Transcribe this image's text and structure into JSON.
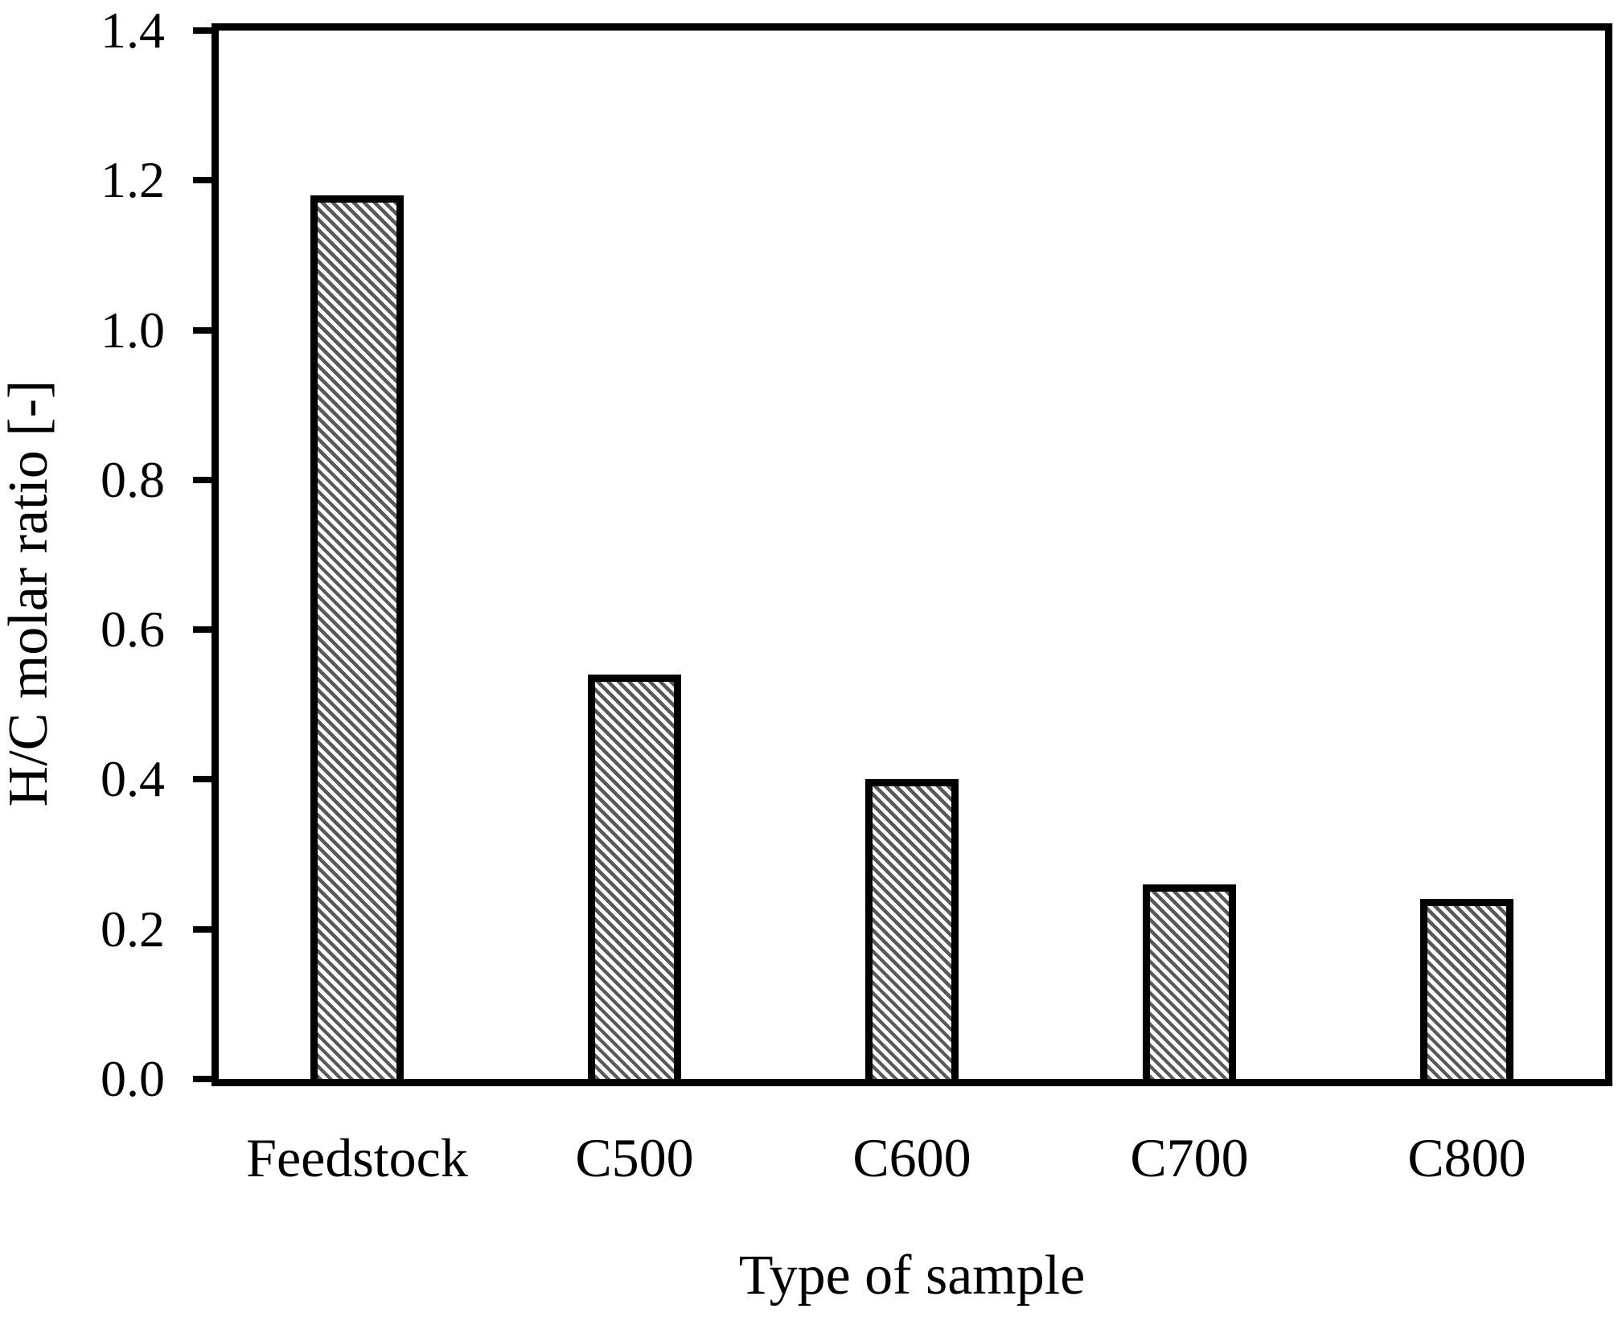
{
  "chart_data": {
    "type": "bar",
    "categories": [
      "Feedstock",
      "C500",
      "C600",
      "C700",
      "C800"
    ],
    "values": [
      1.18,
      0.54,
      0.4,
      0.26,
      0.24
    ],
    "title": "",
    "xlabel": "Type of sample",
    "ylabel": "H/C molar ratio [-]",
    "ylim": [
      0.0,
      1.4
    ],
    "ytick_step": 0.2,
    "ytick_labels": [
      "0.0",
      "0.2",
      "0.4",
      "0.6",
      "0.8",
      "1.0",
      "1.2",
      "1.4"
    ],
    "grid": false,
    "legend": false,
    "colors": {
      "axis": "#000000",
      "bar_border": "#000000",
      "bar_hatch": "#595959",
      "background": "#ffffff"
    },
    "bar_fill_style": "diagonal-hatch"
  }
}
